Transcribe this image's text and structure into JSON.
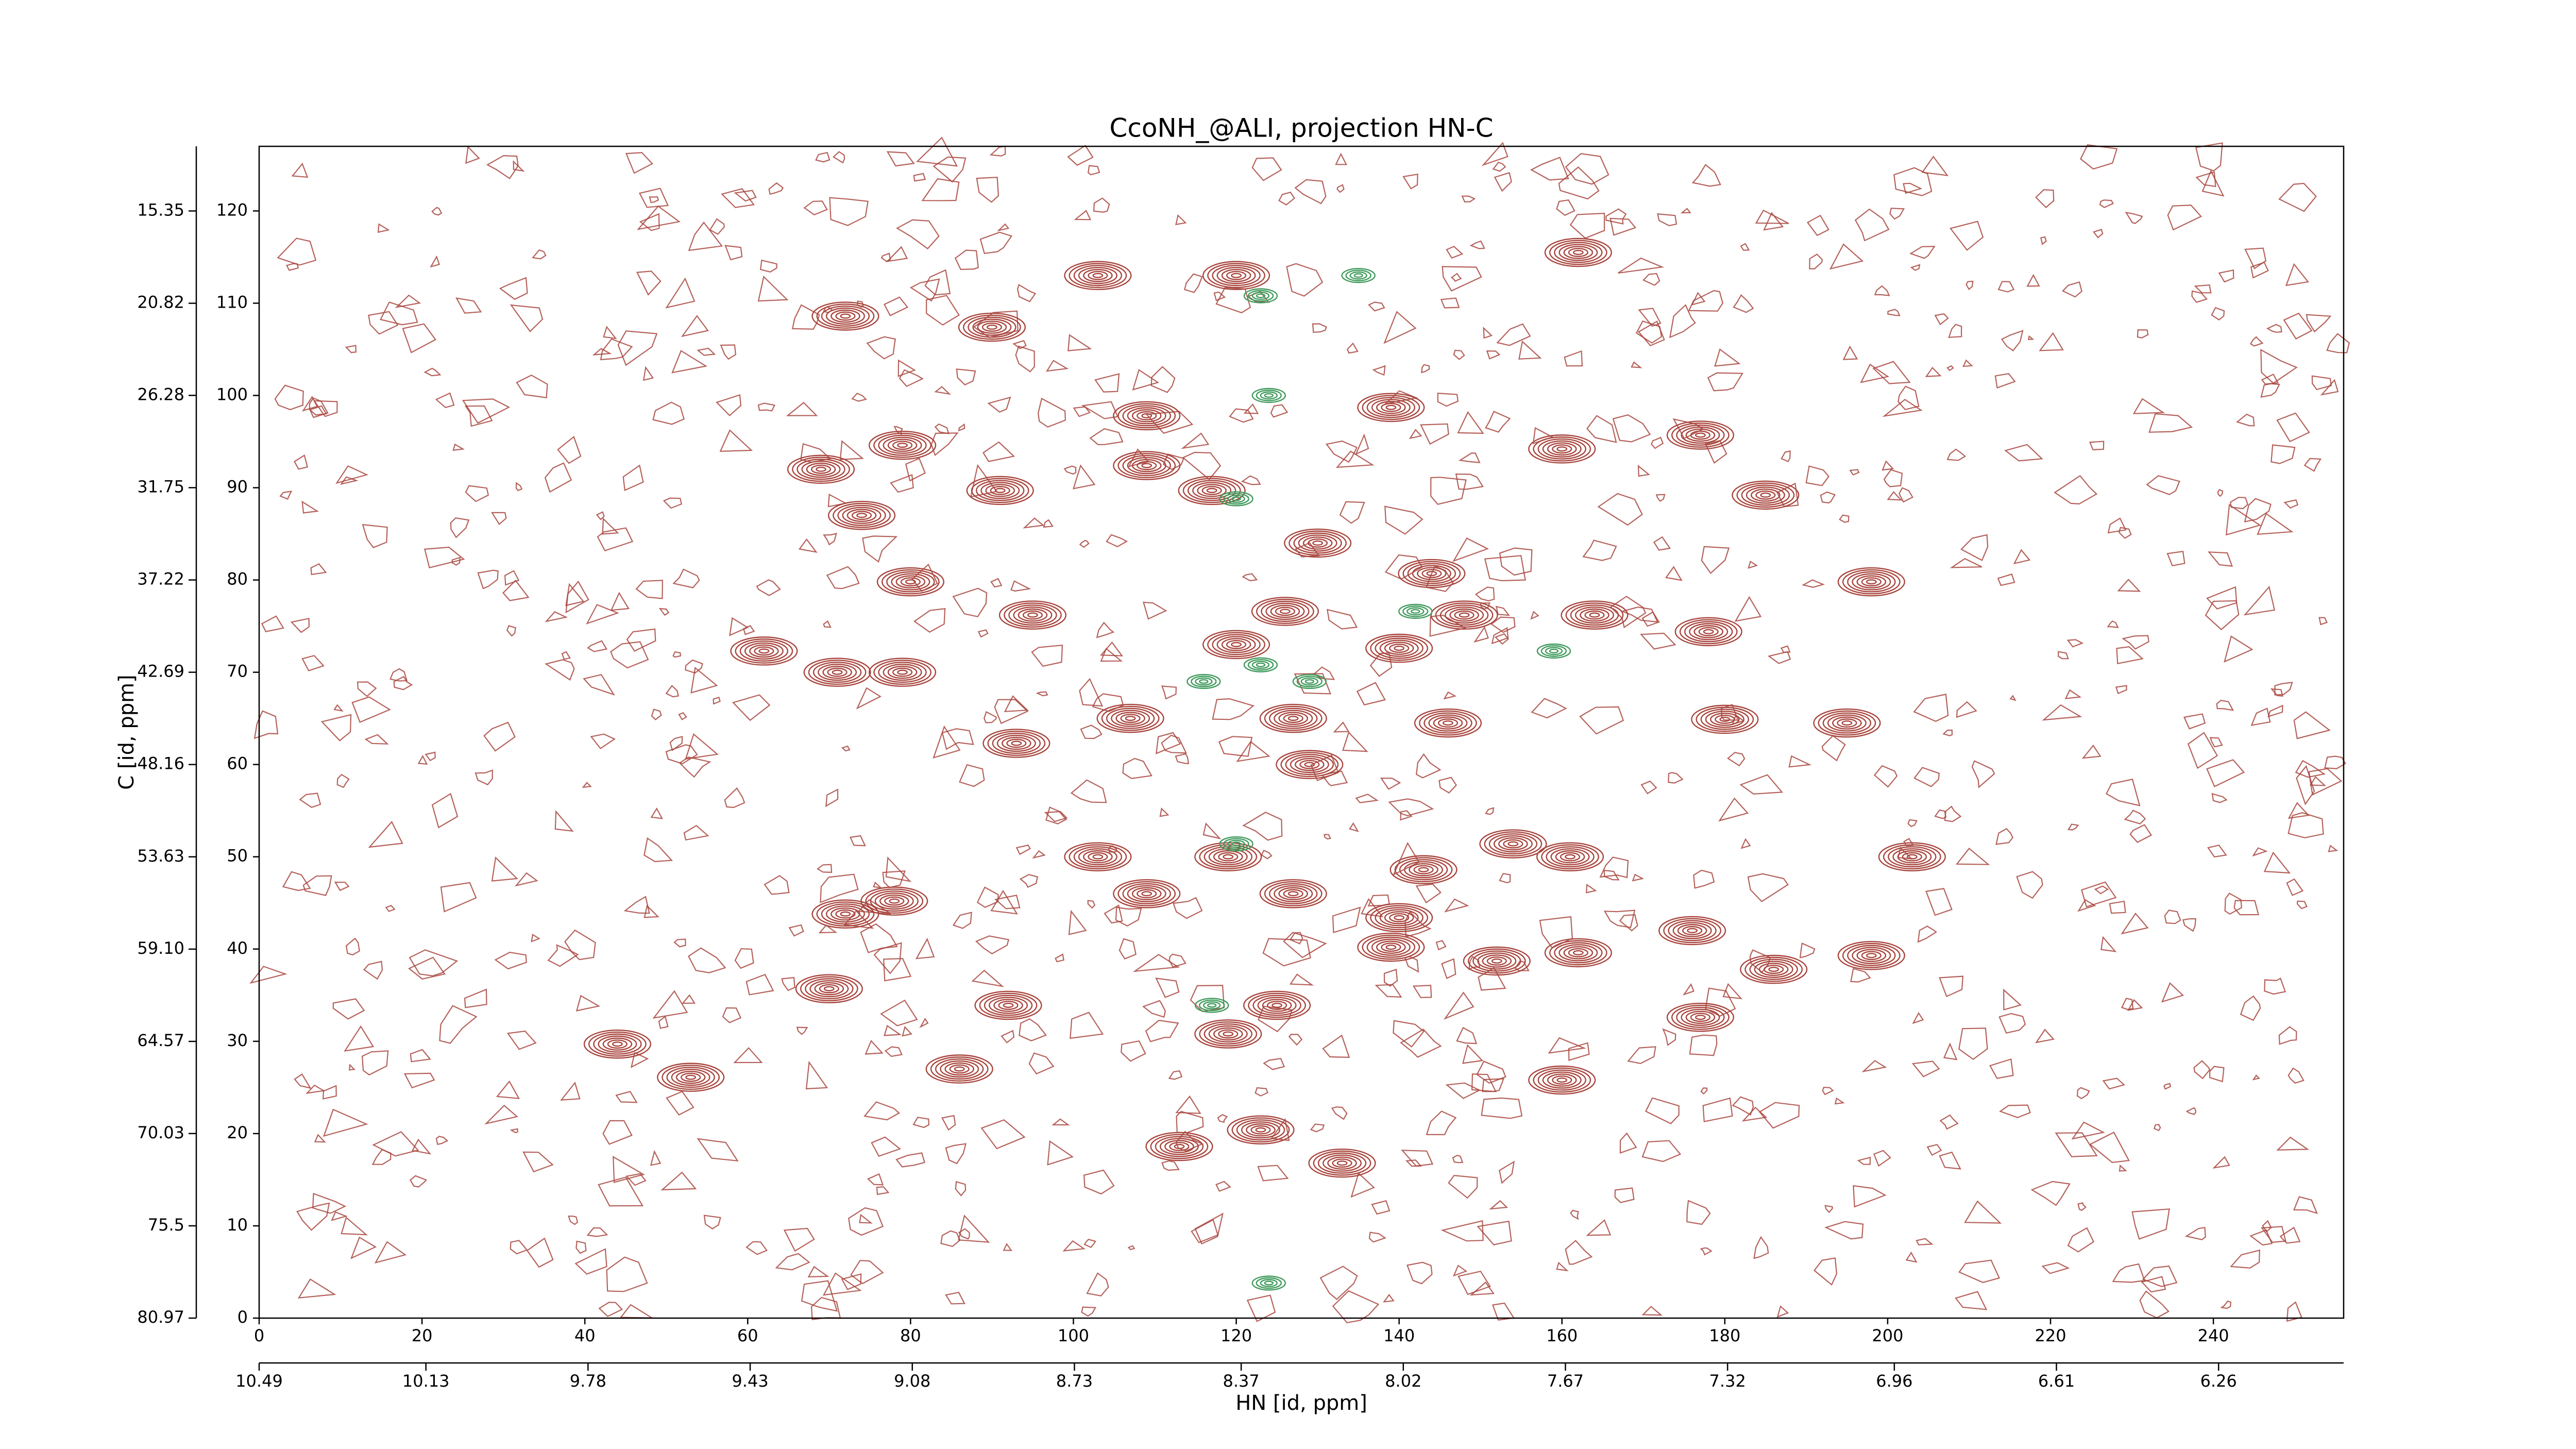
{
  "chart_data": {
    "type": "contour",
    "title": "CcoNH_@ALI, projection HN-C",
    "xlabel": "HN [id, ppm]",
    "ylabel": "C [id, ppm]",
    "xlim": [
      0,
      256
    ],
    "xticks": [
      0,
      20,
      40,
      60,
      80,
      100,
      120,
      140,
      160,
      180,
      200,
      220,
      240
    ],
    "ylim": [
      0,
      127
    ],
    "yticks": [
      0,
      10,
      20,
      30,
      40,
      50,
      60,
      70,
      80,
      90,
      100,
      110,
      120
    ],
    "x2lim": [
      10.49,
      5.99
    ],
    "x2ticks": [
      10.49,
      10.13,
      9.78,
      9.43,
      9.08,
      8.73,
      8.37,
      8.02,
      7.67,
      7.32,
      6.96,
      6.61,
      6.26
    ],
    "y2lim": [
      80.97,
      11.52
    ],
    "y2ticks": [
      15.35,
      20.82,
      26.28,
      31.75,
      37.22,
      42.69,
      48.16,
      53.63,
      {
        "value": 59.1,
        "label": "59.10"
      },
      64.57,
      70.03,
      75.5,
      80.97
    ],
    "series": [
      {
        "color": "#a8453d",
        "x": [
          120,
          103,
          162,
          72,
          90,
          79,
          69,
          91,
          109,
          109,
          117,
          139,
          160,
          177,
          185,
          74,
          80,
          198,
          130,
          144,
          95,
          126,
          148,
          164,
          62,
          79,
          71,
          120,
          140,
          178,
          93,
          107,
          127,
          146,
          180,
          195,
          103,
          119,
          143,
          154,
          161,
          203,
          109,
          127,
          140,
          72,
          78,
          139,
          152,
          162,
          176,
          186,
          198,
          70,
          92,
          119,
          125,
          177,
          44,
          53,
          86,
          160,
          123,
          113,
          133,
          129
        ],
        "y": [
          113,
          113,
          115.5,
          108.6,
          107.4,
          94.6,
          92,
          89.7,
          97.8,
          92.4,
          89.7,
          98.7,
          94.2,
          95.7,
          89.2,
          87,
          79.8,
          79.8,
          84,
          80.7,
          76.2,
          76.6,
          76.2,
          76.2,
          72.3,
          70,
          70,
          73,
          72.6,
          74.4,
          62.3,
          65,
          65,
          64.5,
          64.9,
          64.5,
          50,
          50,
          48.6,
          51.4,
          50,
          50,
          46,
          46,
          43.4,
          43.8,
          45.2,
          40.2,
          38.7,
          39.6,
          42,
          37.8,
          39.3,
          35.7,
          33.9,
          30.8,
          33.9,
          32.6,
          29.7,
          26.1,
          27,
          25.8,
          20.4,
          18.6,
          16.8,
          60
        ]
      },
      {
        "color": "#3f9a5c",
        "x": [
          123,
          124,
          120,
          123,
          116,
          129,
          142,
          159,
          120,
          117,
          124,
          135
        ],
        "y": [
          110.8,
          100,
          88.8,
          70.8,
          69,
          69,
          76.6,
          72.3,
          51.4,
          33.9,
          3.8,
          113
        ]
      }
    ]
  }
}
